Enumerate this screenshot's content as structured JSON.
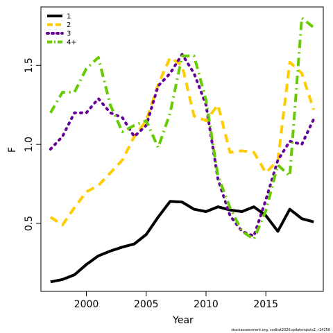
{
  "chart_data": {
    "type": "line",
    "xlabel": "Year",
    "ylabel": "F",
    "xlim": [
      1996.2,
      2019.8
    ],
    "ylim": [
      0.07,
      1.87
    ],
    "x_ticks": [
      2000,
      2005,
      2010,
      2015
    ],
    "y_ticks": [
      0.5,
      1.0,
      1.5
    ],
    "y_tick_labels": [
      "0.5",
      "1.0",
      "1.5"
    ],
    "legend_position": "top-left",
    "grid": false,
    "x": [
      1997,
      1998,
      1999,
      2000,
      2001,
      2002,
      2003,
      2004,
      2005,
      2006,
      2007,
      2008,
      2009,
      2010,
      2011,
      2012,
      2013,
      2014,
      2015,
      2016,
      2017,
      2018,
      2019
    ],
    "series": [
      {
        "name": "1",
        "color": "#000000",
        "dash": "solid",
        "values": [
          0.13,
          0.145,
          0.175,
          0.24,
          0.295,
          0.325,
          0.35,
          0.37,
          0.43,
          0.54,
          0.64,
          0.635,
          0.59,
          0.575,
          0.605,
          0.585,
          0.575,
          0.605,
          0.55,
          0.45,
          0.59,
          0.53,
          0.51
        ]
      },
      {
        "name": "2",
        "color": "#FFCC00",
        "dash": "dashed",
        "values": [
          0.54,
          0.49,
          0.6,
          0.7,
          0.74,
          0.82,
          0.9,
          1.05,
          1.15,
          1.38,
          1.55,
          1.5,
          1.18,
          1.15,
          1.25,
          0.95,
          0.96,
          0.95,
          0.82,
          0.9,
          1.52,
          1.45,
          1.22
        ]
      },
      {
        "name": "3",
        "color": "#660099",
        "dash": "dotted",
        "values": [
          0.97,
          1.05,
          1.2,
          1.2,
          1.29,
          1.2,
          1.17,
          1.05,
          1.12,
          1.37,
          1.45,
          1.57,
          1.45,
          1.25,
          0.78,
          0.55,
          0.45,
          0.42,
          0.65,
          0.9,
          1.02,
          1.0,
          1.16
        ]
      },
      {
        "name": "4+",
        "color": "#66CC00",
        "dash": "dashdot",
        "values": [
          1.2,
          1.33,
          1.33,
          1.48,
          1.55,
          1.25,
          1.08,
          1.12,
          1.15,
          0.98,
          1.2,
          1.56,
          1.56,
          1.28,
          0.8,
          0.6,
          0.45,
          0.4,
          0.58,
          0.87,
          0.8,
          1.8,
          1.74
        ]
      }
    ],
    "footnote": "stockassessment.org, codkat2020updateinputs2, r14256"
  }
}
